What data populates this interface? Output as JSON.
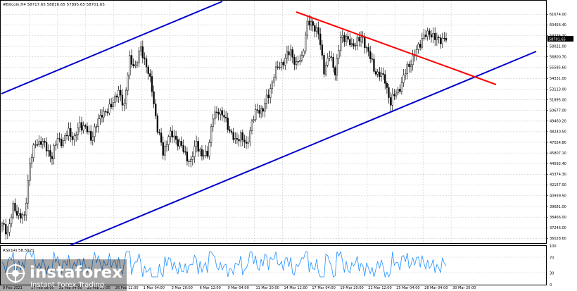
{
  "chart_data": {
    "type": "candlestick",
    "symbol_line": "#Bitcoin,H4  58717.65 58816.65 57895.65 58701.65",
    "current_price_label": "58701.65",
    "price_ticks": [
      "61674.00",
      "60456.40",
      "59236.30",
      "58021.00",
      "56800.70",
      "55585.60",
      "54331.00",
      "53113.00",
      "51895.00",
      "50677.00",
      "49460.20",
      "48240.50",
      "47024.80",
      "45807.10",
      "44592.40",
      "43374.30",
      "42157.00",
      "40939.50",
      "39681.00",
      "38466.00",
      "37246.00",
      "36028.60"
    ],
    "rsi_label": "RSI(14) 58.5921",
    "rsi_ticks": [
      "100",
      "70",
      "30",
      "0"
    ],
    "time_labels": [
      "9 Feb 2021",
      "17 Feb 08:00",
      "21 Feb 04:00",
      "23 Feb 20:00",
      "26 Feb 12:00",
      "1 Mar 04:00",
      "3 Mar 20:00",
      "6 Mar 12:00",
      "9 Mar 04:00",
      "11 Mar 20:00",
      "14 Mar 12:00",
      "17 Mar 04:00",
      "19 Mar 20:00",
      "22 Mar 12:00",
      "25 Mar 04:00",
      "28 Mar 04:00",
      "30 Mar 20:00"
    ],
    "close_path": [
      37500,
      36800,
      39500,
      38800,
      38300,
      44800,
      46800,
      47200,
      46300,
      45400,
      47500,
      47000,
      48400,
      47300,
      49200,
      48600,
      47600,
      48900,
      50500,
      50400,
      51900,
      52600,
      51400,
      56400,
      55800,
      57700,
      55900,
      53000,
      48600,
      45800,
      47800,
      47700,
      46800,
      45700,
      44600,
      47200,
      45300,
      45900,
      49800,
      50800,
      49800,
      48500,
      47000,
      48000,
      46400,
      49500,
      50600,
      50900,
      52400,
      54800,
      55800,
      56600,
      57500,
      55800,
      56800,
      60500,
      60600,
      59400,
      55400,
      56900,
      55200,
      58800,
      59200,
      57800,
      58900,
      58700,
      57500,
      55200,
      54900,
      54100,
      51500,
      52800,
      53600,
      55800,
      56400,
      58200,
      59000,
      59700,
      58800,
      58900,
      58700
    ]
  },
  "watermark": {
    "brand": "instaforex",
    "tagline": "Instant Forex Trading"
  },
  "colors": {
    "channel_line": "#0000cc",
    "resistance_line": "#ff0000",
    "candle": "#000000",
    "rsi_line": "#1e90ff",
    "grid": "#c8c8c8"
  }
}
